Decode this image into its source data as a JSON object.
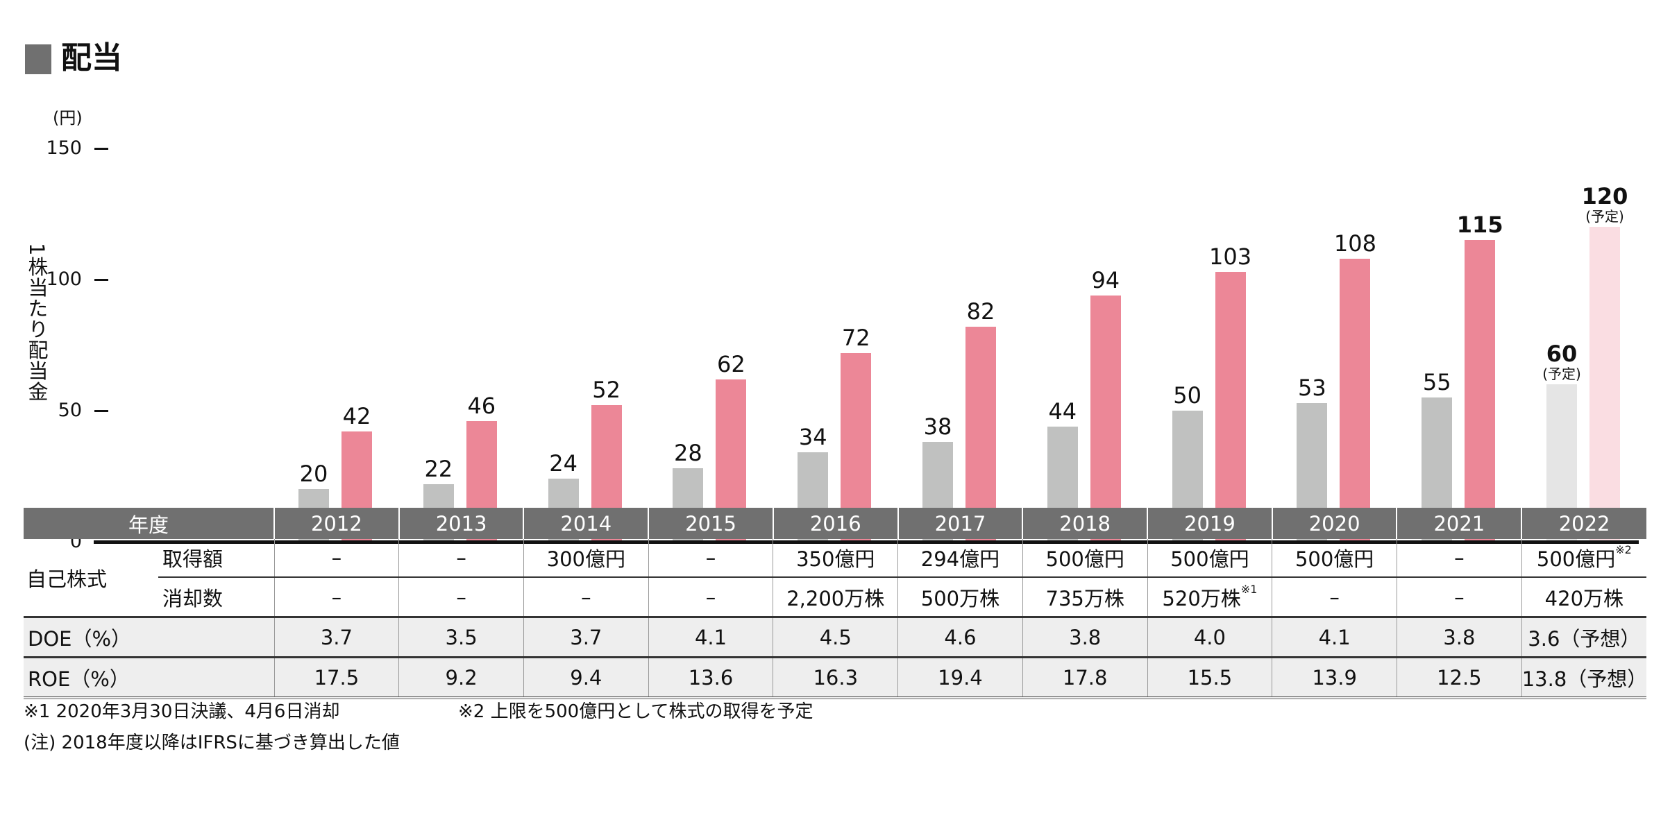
{
  "title": "配当",
  "chart_data": {
    "type": "bar",
    "title": "配当",
    "ylabel": "1株当たり配当金",
    "yunit": "(円)",
    "ylim": [
      0,
      150
    ],
    "yticks": [
      "0",
      "50",
      "100",
      "150"
    ],
    "categories": [
      "2012",
      "2013",
      "2014",
      "2015",
      "2016",
      "2017",
      "2018",
      "2019",
      "2020",
      "2021",
      "2022"
    ],
    "series": [
      {
        "name": "gray",
        "values": [
          20,
          22,
          24,
          28,
          34,
          38,
          44,
          50,
          53,
          55,
          60
        ],
        "color": "#c0c1c0",
        "forecast_color": "#e5e5e5"
      },
      {
        "name": "pink",
        "values": [
          42,
          46,
          52,
          62,
          72,
          82,
          94,
          103,
          108,
          115,
          120
        ],
        "color": "#ec8797",
        "forecast_color": "#fadde2"
      }
    ],
    "forecast_note": "(予定)",
    "bold_labels": {
      "gray": [
        10
      ],
      "pink": [
        9,
        10
      ]
    }
  },
  "table": {
    "header_label": "年度",
    "years": [
      "2012",
      "2013",
      "2014",
      "2015",
      "2016",
      "2017",
      "2018",
      "2019",
      "2020",
      "2021",
      "2022"
    ],
    "treasury_label": "自己株式",
    "acquisition": {
      "label": "取得額",
      "values": [
        "–",
        "–",
        "300億円",
        "–",
        "350億円",
        "294億円",
        "500億円",
        "500億円",
        "500億円",
        "–",
        "500億円"
      ],
      "sup": {
        "10": "※2"
      }
    },
    "cancellation": {
      "label": "消却数",
      "values": [
        "–",
        "–",
        "–",
        "–",
        "2,200万株",
        "500万株",
        "735万株",
        "520万株",
        "–",
        "–",
        "420万株"
      ],
      "sup": {
        "7": "※1"
      }
    },
    "doe": {
      "label": "DOE（%）",
      "values": [
        "3.7",
        "3.5",
        "3.7",
        "4.1",
        "4.5",
        "4.6",
        "3.8",
        "4.0",
        "4.1",
        "3.8",
        "3.6（予想）"
      ]
    },
    "roe": {
      "label": "ROE（%）",
      "values": [
        "17.5",
        "9.2",
        "9.4",
        "13.6",
        "16.3",
        "19.4",
        "17.8",
        "15.5",
        "13.9",
        "12.5",
        "13.8（予想）"
      ]
    }
  },
  "notes": {
    "note1": "※1 2020年3月30日決議、4月6日消却",
    "note2": "※2 上限を500億円として株式の取得を予定",
    "note3": "(注) 2018年度以降はIFRSに基づき算出した値"
  }
}
